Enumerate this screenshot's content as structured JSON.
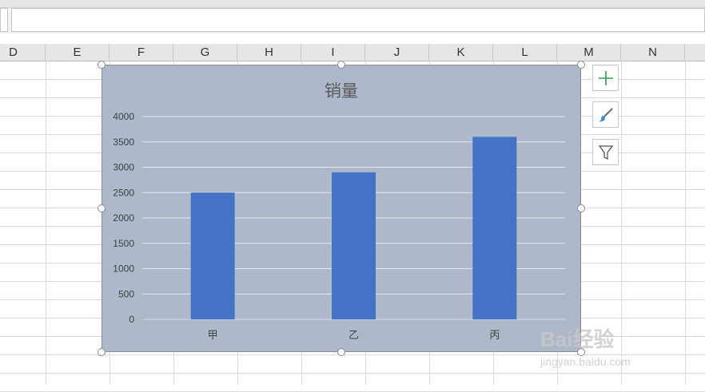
{
  "columns": [
    "D",
    "E",
    "F",
    "G",
    "H",
    "I",
    "J",
    "K",
    "L",
    "M",
    "N"
  ],
  "chart_data": {
    "type": "bar",
    "title": "销量",
    "categories": [
      "甲",
      "乙",
      "丙"
    ],
    "values": [
      2500,
      2900,
      3600
    ],
    "ylim": [
      0,
      4000
    ],
    "yticks": [
      "0",
      "500",
      "1000",
      "1500",
      "2000",
      "2500",
      "3000",
      "3500",
      "4000"
    ],
    "grid": true,
    "bar_color": "#4472c4",
    "background": "#adb9ca"
  },
  "side_buttons": [
    "add-chart-element-icon",
    "chart-styles-brush-icon",
    "chart-filter-icon"
  ],
  "watermark": {
    "text": "Bai经验",
    "sub": "jingyan.baidu.com"
  }
}
